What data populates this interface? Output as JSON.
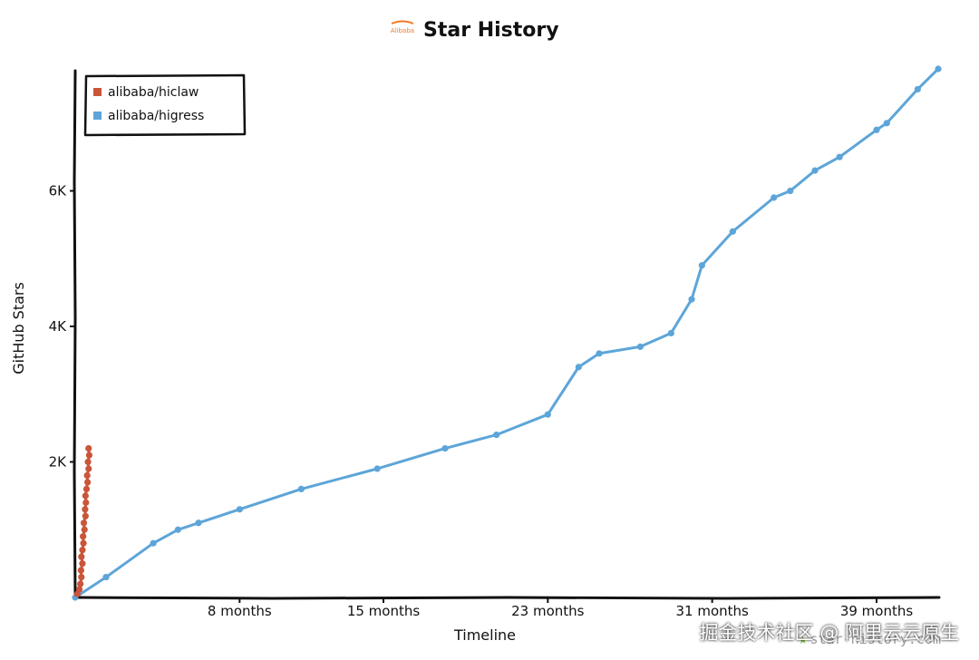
{
  "chart_data": {
    "type": "line",
    "title": "Star History",
    "logo_text": "Alibaba",
    "xlabel": "Timeline",
    "ylabel": "GitHub Stars",
    "xlim": [
      0,
      42
    ],
    "ylim": [
      0,
      7800
    ],
    "x_ticks": [
      {
        "value": 8,
        "label": "8 months"
      },
      {
        "value": 15,
        "label": "15 months"
      },
      {
        "value": 23,
        "label": "23 months"
      },
      {
        "value": 31,
        "label": "31 months"
      },
      {
        "value": 39,
        "label": "39 months"
      }
    ],
    "y_ticks": [
      {
        "value": 2000,
        "label": "2K"
      },
      {
        "value": 4000,
        "label": "4K"
      },
      {
        "value": 6000,
        "label": "6K"
      }
    ],
    "legend_position": "top-left",
    "series": [
      {
        "name": "alibaba/hiclaw",
        "color": "#c9553a",
        "points": [
          [
            0.1,
            50
          ],
          [
            0.2,
            120
          ],
          [
            0.25,
            200
          ],
          [
            0.3,
            300
          ],
          [
            0.28,
            400
          ],
          [
            0.35,
            500
          ],
          [
            0.3,
            600
          ],
          [
            0.35,
            700
          ],
          [
            0.4,
            800
          ],
          [
            0.38,
            900
          ],
          [
            0.45,
            1000
          ],
          [
            0.42,
            1100
          ],
          [
            0.5,
            1200
          ],
          [
            0.48,
            1300
          ],
          [
            0.52,
            1400
          ],
          [
            0.5,
            1500
          ],
          [
            0.55,
            1600
          ],
          [
            0.6,
            1700
          ],
          [
            0.58,
            1800
          ],
          [
            0.65,
            1900
          ],
          [
            0.62,
            2000
          ],
          [
            0.68,
            2100
          ],
          [
            0.65,
            2200
          ]
        ]
      },
      {
        "name": "alibaba/higress",
        "color": "#5da5d8",
        "points": [
          [
            0,
            0
          ],
          [
            1.5,
            300
          ],
          [
            3.8,
            800
          ],
          [
            5,
            1000
          ],
          [
            6,
            1100
          ],
          [
            8,
            1300
          ],
          [
            11,
            1600
          ],
          [
            14.7,
            1900
          ],
          [
            18,
            2200
          ],
          [
            20.5,
            2400
          ],
          [
            23,
            2700
          ],
          [
            24.5,
            3400
          ],
          [
            25.5,
            3600
          ],
          [
            27.5,
            3700
          ],
          [
            29,
            3900
          ],
          [
            30,
            4400
          ],
          [
            30.5,
            4900
          ],
          [
            32,
            5400
          ],
          [
            34,
            5900
          ],
          [
            34.8,
            6000
          ],
          [
            36,
            6300
          ],
          [
            37.2,
            6500
          ],
          [
            39,
            6900
          ],
          [
            39.5,
            7000
          ],
          [
            41,
            7500
          ],
          [
            42,
            7800
          ]
        ]
      }
    ]
  },
  "watermark": {
    "text": "掘金技术社区 @ 阿里云云原生",
    "site": "star-history.com"
  }
}
